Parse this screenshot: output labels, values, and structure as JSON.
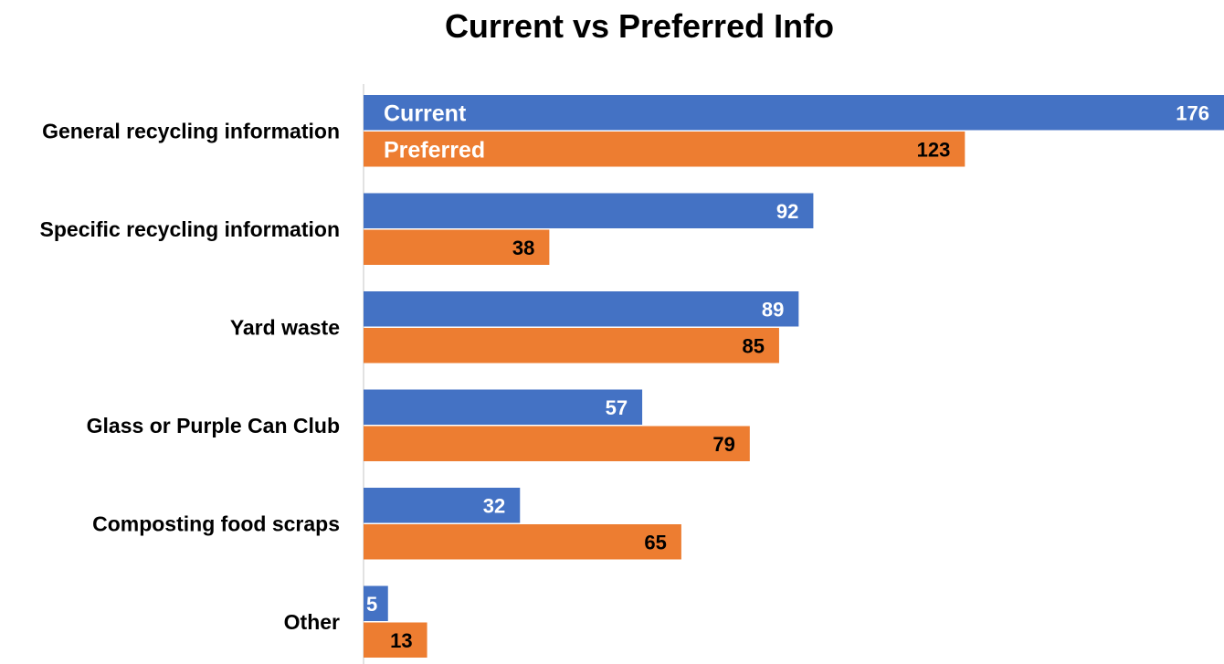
{
  "chart_data": {
    "type": "bar",
    "orientation": "horizontal",
    "title": "Current vs Preferred Info",
    "xlabel": "",
    "ylabel": "",
    "categories": [
      "General recycling information",
      "Specific recycling information",
      "Yard waste",
      "Glass or Purple Can Club",
      "Composting food scraps",
      "Other"
    ],
    "series": [
      {
        "name": "Current",
        "values": [
          176,
          92,
          89,
          57,
          32,
          5
        ],
        "color": "#4472C4",
        "label_color": "#ffffff"
      },
      {
        "name": "Preferred",
        "values": [
          123,
          38,
          85,
          79,
          65,
          13
        ],
        "color": "#ED7D31",
        "label_color": "#000000"
      }
    ],
    "xlim": [
      0,
      176
    ],
    "grid": false,
    "legend": "inside-top-left",
    "data_labels": true
  }
}
